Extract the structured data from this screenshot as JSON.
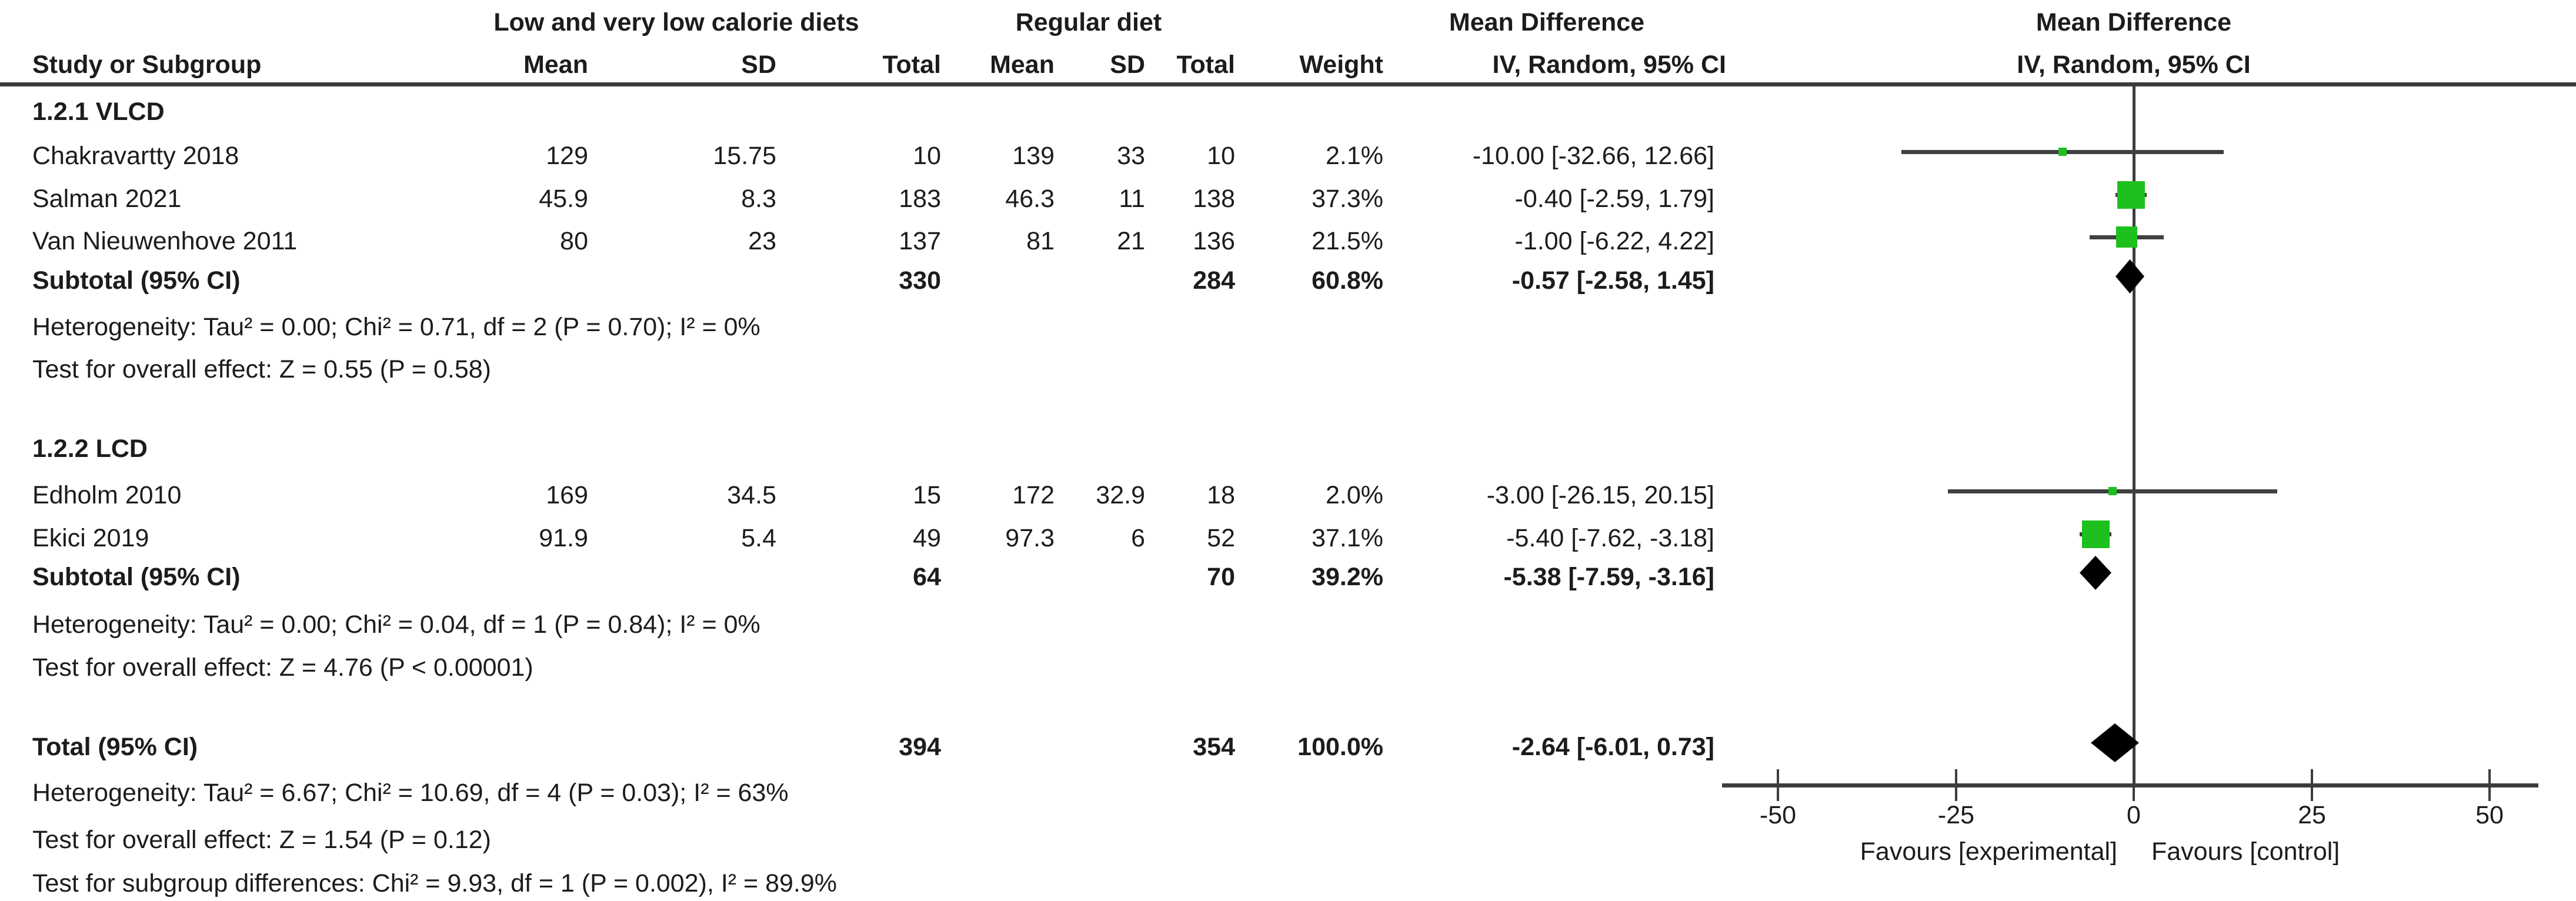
{
  "header": {
    "study": "Study or Subgroup",
    "group_experimental": "Low and very low calorie diets",
    "group_control": "Regular diet",
    "mean1": "Mean",
    "sd1": "SD",
    "total1": "Total",
    "mean2": "Mean",
    "sd2": "SD",
    "total2": "Total",
    "weight": "Weight",
    "md_title_left": "Mean Difference",
    "md_sub_left": "IV, Random, 95% CI",
    "md_title_right": "Mean Difference",
    "md_sub_right": "IV, Random, 95% CI"
  },
  "rows": [
    {
      "type": "subgroup",
      "label": "1.2.1 VLCD"
    },
    {
      "type": "study",
      "label": "Chakravartty 2018",
      "mean1": "129",
      "sd1": "15.75",
      "total1": "10",
      "mean2": "139",
      "sd2": "33",
      "total2": "10",
      "weight": "2.1%",
      "ci": "-10.00 [-32.66, 12.66]",
      "est": -10.0,
      "lo": -32.66,
      "hi": 12.66,
      "sq": 14
    },
    {
      "type": "study",
      "label": "Salman 2021",
      "mean1": "45.9",
      "sd1": "8.3",
      "total1": "183",
      "mean2": "46.3",
      "sd2": "11",
      "total2": "138",
      "weight": "37.3%",
      "ci": "-0.40 [-2.59, 1.79]",
      "est": -0.4,
      "lo": -2.59,
      "hi": 1.79,
      "sq": 47
    },
    {
      "type": "study",
      "label": "Van Nieuwenhove 2011",
      "mean1": "80",
      "sd1": "23",
      "total1": "137",
      "mean2": "81",
      "sd2": "21",
      "total2": "136",
      "weight": "21.5%",
      "ci": "-1.00 [-6.22, 4.22]",
      "est": -1.0,
      "lo": -6.22,
      "hi": 4.22,
      "sq": 36
    },
    {
      "type": "subtotal",
      "label": "Subtotal (95% CI)",
      "total1": "330",
      "total2": "284",
      "weight": "60.8%",
      "ci": "-0.57 [-2.58, 1.45]",
      "est": -0.57,
      "lo": -2.58,
      "hi": 1.45
    },
    {
      "type": "note",
      "label": "Heterogeneity: Tau² = 0.00; Chi² = 0.71, df = 2 (P = 0.70); I² = 0%"
    },
    {
      "type": "note",
      "label": "Test for overall effect: Z = 0.55 (P = 0.58)"
    },
    {
      "type": "subgroup",
      "label": "1.2.2 LCD"
    },
    {
      "type": "study",
      "label": "Edholm 2010",
      "mean1": "169",
      "sd1": "34.5",
      "total1": "15",
      "mean2": "172",
      "sd2": "32.9",
      "total2": "18",
      "weight": "2.0%",
      "ci": "-3.00 [-26.15, 20.15]",
      "est": -3.0,
      "lo": -26.15,
      "hi": 20.15,
      "sq": 14
    },
    {
      "type": "study",
      "label": "Ekici 2019",
      "mean1": "91.9",
      "sd1": "5.4",
      "total1": "49",
      "mean2": "97.3",
      "sd2": "6",
      "total2": "52",
      "weight": "37.1%",
      "ci": "-5.40 [-7.62, -3.18]",
      "est": -5.4,
      "lo": -7.62,
      "hi": -3.18,
      "sq": 47
    },
    {
      "type": "subtotal",
      "label": "Subtotal (95% CI)",
      "total1": "64",
      "total2": "70",
      "weight": "39.2%",
      "ci": "-5.38 [-7.59, -3.16]",
      "est": -5.38,
      "lo": -7.59,
      "hi": -3.16
    },
    {
      "type": "note",
      "label": "Heterogeneity: Tau² = 0.00; Chi² = 0.04, df = 1 (P = 0.84); I² = 0%"
    },
    {
      "type": "note",
      "label": "Test for overall effect: Z = 4.76 (P < 0.00001)"
    },
    {
      "type": "total",
      "label": "Total (95% CI)",
      "total1": "394",
      "total2": "354",
      "weight": "100.0%",
      "ci": "-2.64 [-6.01, 0.73]",
      "est": -2.64,
      "lo": -6.01,
      "hi": 0.73
    },
    {
      "type": "note",
      "label": "Heterogeneity: Tau² = 6.67; Chi² = 10.69, df = 4 (P = 0.03); I² = 63%"
    },
    {
      "type": "note",
      "label": "Test for overall effect: Z = 1.54 (P = 0.12)"
    },
    {
      "type": "note",
      "label": "Test for subgroup differences: Chi² = 9.93, df = 1 (P = 0.002), I² = 89.9%"
    }
  ],
  "axis": {
    "ticks": [
      "-50",
      "-25",
      "0",
      "25",
      "50"
    ],
    "favours_left": "Favours [experimental]",
    "favours_right": "Favours [control]"
  },
  "colors": {
    "marker_green": "#1ec01e",
    "line_gray": "#3c3c3c",
    "ci_gray": "#404040",
    "diamond_black": "#000000"
  },
  "chart_data": {
    "type": "scatter",
    "subtype": "forest_plot",
    "title": "Mean Difference, IV, Random, 95% CI",
    "xlim": [
      -50,
      50
    ],
    "x_ticks": [
      -50,
      -25,
      0,
      25,
      50
    ],
    "xlabel_left": "Favours [experimental]",
    "xlabel_right": "Favours [control]",
    "effect_measure": "Mean Difference (IV, Random, 95% CI)",
    "groups": [
      {
        "name": "1.2.1 VLCD",
        "studies": [
          {
            "study": "Chakravartty 2018",
            "exp_mean": 129,
            "exp_sd": 15.75,
            "exp_total": 10,
            "ctrl_mean": 139,
            "ctrl_sd": 33,
            "ctrl_total": 10,
            "weight_pct": 2.1,
            "est": -10.0,
            "ci95": [
              -32.66,
              12.66
            ]
          },
          {
            "study": "Salman 2021",
            "exp_mean": 45.9,
            "exp_sd": 8.3,
            "exp_total": 183,
            "ctrl_mean": 46.3,
            "ctrl_sd": 11,
            "ctrl_total": 138,
            "weight_pct": 37.3,
            "est": -0.4,
            "ci95": [
              -2.59,
              1.79
            ]
          },
          {
            "study": "Van Nieuwenhove 2011",
            "exp_mean": 80,
            "exp_sd": 23,
            "exp_total": 137,
            "ctrl_mean": 81,
            "ctrl_sd": 21,
            "ctrl_total": 136,
            "weight_pct": 21.5,
            "est": -1.0,
            "ci95": [
              -6.22,
              4.22
            ]
          }
        ],
        "subtotal": {
          "exp_total": 330,
          "ctrl_total": 284,
          "weight_pct": 60.8,
          "est": -0.57,
          "ci95": [
            -2.58,
            1.45
          ]
        },
        "heterogeneity": "Tau² = 0.00; Chi² = 0.71, df = 2 (P = 0.70); I² = 0%",
        "overall_effect": "Z = 0.55 (P = 0.58)"
      },
      {
        "name": "1.2.2 LCD",
        "studies": [
          {
            "study": "Edholm 2010",
            "exp_mean": 169,
            "exp_sd": 34.5,
            "exp_total": 15,
            "ctrl_mean": 172,
            "ctrl_sd": 32.9,
            "ctrl_total": 18,
            "weight_pct": 2.0,
            "est": -3.0,
            "ci95": [
              -26.15,
              20.15
            ]
          },
          {
            "study": "Ekici 2019",
            "exp_mean": 91.9,
            "exp_sd": 5.4,
            "exp_total": 49,
            "ctrl_mean": 97.3,
            "ctrl_sd": 6,
            "ctrl_total": 52,
            "weight_pct": 37.1,
            "est": -5.4,
            "ci95": [
              -7.62,
              -3.18
            ]
          }
        ],
        "subtotal": {
          "exp_total": 64,
          "ctrl_total": 70,
          "weight_pct": 39.2,
          "est": -5.38,
          "ci95": [
            -7.59,
            -3.16
          ]
        },
        "heterogeneity": "Tau² = 0.00; Chi² = 0.04, df = 1 (P = 0.84); I² = 0%",
        "overall_effect": "Z = 4.76 (P < 0.00001)"
      }
    ],
    "total": {
      "exp_total": 394,
      "ctrl_total": 354,
      "weight_pct": 100.0,
      "est": -2.64,
      "ci95": [
        -6.01,
        0.73
      ]
    },
    "total_heterogeneity": "Tau² = 6.67; Chi² = 10.69, df = 4 (P = 0.03); I² = 63%",
    "total_overall_effect": "Z = 1.54 (P = 0.12)",
    "subgroup_differences": "Chi² = 9.93, df = 1 (P = 0.002), I² = 89.9%"
  }
}
